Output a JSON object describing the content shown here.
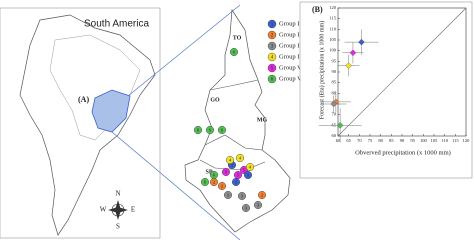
{
  "map": {
    "region_label": "South America",
    "panel_label": "(A)",
    "states": [
      "TO",
      "GO",
      "MG",
      "SP"
    ],
    "compass": [
      "N",
      "S",
      "E",
      "W"
    ],
    "group_numbers": [
      "1",
      "2",
      "3",
      "4",
      "5",
      "6"
    ]
  },
  "chart_data": {
    "type": "scatter",
    "panel_label": "(B)",
    "xlabel": "Obverved precipitation (x 1000 mm)",
    "ylabel": "Forecast (Eta) precipitation (x 1000 mm)",
    "xlim": [
      60,
      120
    ],
    "ylim": [
      60,
      120
    ],
    "xticks": [
      60,
      65,
      70,
      75,
      80,
      85,
      90,
      95,
      100,
      105,
      110,
      115,
      120
    ],
    "yticks": [
      60,
      65,
      70,
      75,
      80,
      85,
      90,
      95,
      100,
      105,
      110,
      115,
      120
    ],
    "series": [
      {
        "name": "Group I",
        "color": "#3b5fcf",
        "x": [
          71
        ],
        "values": [
          104
        ],
        "xerr": [
          8
        ],
        "yerr": [
          6
        ]
      },
      {
        "name": "Group II",
        "color": "#f07f2e",
        "x": [
          59
        ],
        "values": [
          76
        ],
        "xerr": [
          7
        ],
        "yerr": [
          5
        ]
      },
      {
        "name": "Group III",
        "color": "#8c8c8c",
        "x": [
          58
        ],
        "values": [
          75
        ],
        "xerr": [
          6
        ],
        "yerr": [
          4
        ]
      },
      {
        "name": "Group IV",
        "color": "#f2e11f",
        "x": [
          65
        ],
        "values": [
          93
        ],
        "xerr": [
          5
        ],
        "yerr": [
          5
        ]
      },
      {
        "name": "Group V",
        "color": "#e02ae0",
        "x": [
          67
        ],
        "values": [
          99
        ],
        "xerr": [
          5
        ],
        "yerr": [
          5
        ]
      },
      {
        "name": "Group VI",
        "color": "#4fbf4f",
        "x": [
          61
        ],
        "values": [
          65
        ],
        "xerr": [
          10
        ],
        "yerr": [
          8
        ]
      }
    ]
  }
}
